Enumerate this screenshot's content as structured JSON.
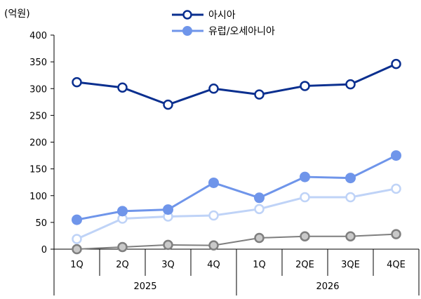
{
  "chart_data": {
    "type": "line",
    "unit": "(억원)",
    "ylim": [
      0,
      400
    ],
    "yticks": [
      0,
      50,
      100,
      150,
      200,
      250,
      300,
      350,
      400
    ],
    "categories": [
      "1Q",
      "2Q",
      "3Q",
      "4Q",
      "1Q",
      "2QE",
      "3QE",
      "4QE"
    ],
    "groups": [
      {
        "label": "2025",
        "span": 4
      },
      {
        "label": "2026",
        "span": 4
      }
    ],
    "series": [
      {
        "name": "아시아",
        "values": [
          312,
          302,
          270,
          300,
          289,
          305,
          308,
          346
        ],
        "line_color": "#0a2f8f",
        "marker_fill": "#ffffff",
        "in_legend": true
      },
      {
        "name": "유럽/오세아니아",
        "values": [
          55,
          71,
          74,
          124,
          96,
          135,
          133,
          175
        ],
        "line_color": "#6f95ea",
        "marker_fill": "#6f95ea",
        "in_legend": true
      },
      {
        "values": [
          19,
          57,
          61,
          63,
          75,
          97,
          97,
          113
        ],
        "line_color": "#bfd3f7",
        "marker_fill": "#ffffff",
        "in_legend": false
      },
      {
        "values": [
          0,
          4,
          8,
          7,
          21,
          24,
          24,
          28
        ],
        "line_color": "#7f7f7f",
        "marker_fill": "#c9c9c9",
        "in_legend": false
      }
    ],
    "grid": false,
    "legend_position": "top"
  }
}
